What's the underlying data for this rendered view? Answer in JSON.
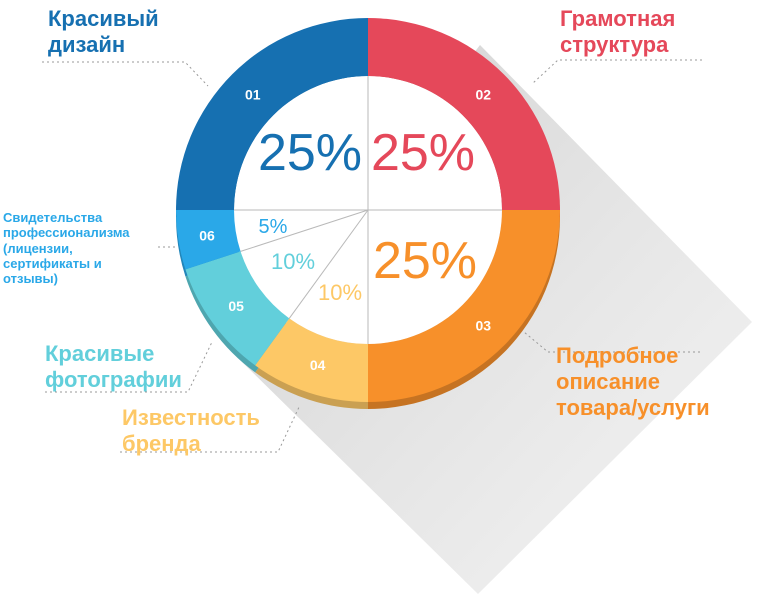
{
  "chart_data": {
    "type": "pie",
    "categories": [
      "Красивый\nдизайн",
      "Грамотная\nструктура",
      "Подробное\nописание\nтовара/услуги",
      "Известность\nбренда",
      "Красивые\nфотографии",
      "Свидетельства\nпрофессионализма\n(лицензии,\nсертификаты и\nотзывы)"
    ],
    "segment_numbers": [
      "01",
      "02",
      "03",
      "04",
      "05",
      "06"
    ],
    "values": [
      25,
      25,
      25,
      10,
      10,
      5
    ],
    "value_labels": [
      "25%",
      "25%",
      "25%",
      "10%",
      "10%",
      "5%"
    ],
    "colors": [
      "#1670b1",
      "#e5485a",
      "#f7902a",
      "#fdc866",
      "#62cfdb",
      "#2aa8e8"
    ],
    "donut": true
  }
}
